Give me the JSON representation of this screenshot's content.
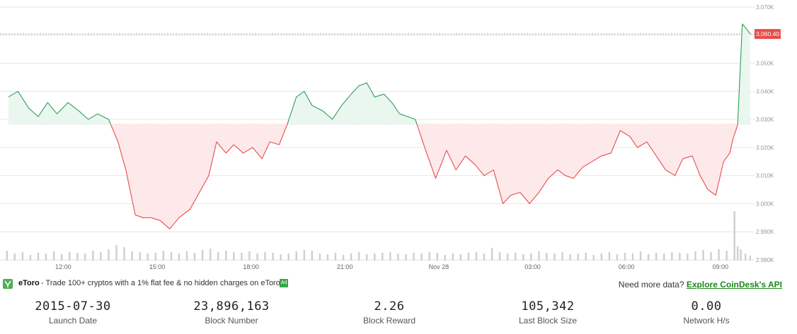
{
  "chart_data": {
    "type": "area",
    "baseline": 3028.3,
    "last_price_label": "3,060.40",
    "last_price": 3060.4,
    "ylim": [
      2980,
      3070
    ],
    "y_ticks": [
      {
        "v": 3070,
        "label": "3.070K"
      },
      {
        "v": 3060,
        "label": "3.060K"
      },
      {
        "v": 3050,
        "label": "3.050K"
      },
      {
        "v": 3040,
        "label": "3.040K"
      },
      {
        "v": 3030,
        "label": "3.030K"
      },
      {
        "v": 3020,
        "label": "3.020K"
      },
      {
        "v": 3010,
        "label": "3.010K"
      },
      {
        "v": 3000,
        "label": "3.000K"
      },
      {
        "v": 2990,
        "label": "2.990K"
      },
      {
        "v": 2980,
        "label": "2.980K"
      }
    ],
    "x_ticks": [
      {
        "t": 12.0,
        "label": "12:00"
      },
      {
        "t": 15.0,
        "label": "15:00"
      },
      {
        "t": 18.0,
        "label": "18:00"
      },
      {
        "t": 21.0,
        "label": "21:00"
      },
      {
        "t": 24.0,
        "label": "Nov 28"
      },
      {
        "t": 27.0,
        "label": "03:00"
      },
      {
        "t": 30.0,
        "label": "06:00"
      },
      {
        "t": 33.0,
        "label": "09:00"
      }
    ],
    "series": [
      {
        "x": [
          10.25,
          10.55,
          10.9,
          11.2,
          11.5,
          11.8,
          12.15,
          12.5,
          12.8,
          13.1,
          13.45,
          13.75,
          14.0,
          14.3,
          14.55,
          14.8,
          15.1,
          15.4,
          15.7,
          16.05,
          16.35,
          16.65,
          16.9,
          17.2,
          17.45,
          17.75,
          18.05,
          18.35,
          18.6,
          18.9,
          19.15,
          19.45,
          19.7,
          19.95,
          20.3,
          20.6,
          20.9,
          21.2,
          21.45,
          21.7,
          21.95,
          22.25,
          22.5,
          22.75,
          23.0,
          23.25,
          23.55,
          23.9,
          24.25,
          24.55,
          24.85,
          25.15,
          25.45,
          25.75,
          26.05,
          26.3,
          26.6,
          26.9,
          27.2,
          27.5,
          27.8,
          28.05,
          28.3,
          28.6,
          28.9,
          29.2,
          29.5,
          29.8,
          30.1,
          30.35,
          30.65,
          30.95,
          31.25,
          31.55,
          31.8,
          32.1,
          32.35,
          32.6,
          32.85,
          33.1,
          33.3,
          33.4,
          33.55,
          33.7,
          33.85,
          33.95
        ],
        "y": [
          3038,
          3040,
          3034,
          3031,
          3036,
          3032,
          3036,
          3033,
          3030,
          3032,
          3030,
          3022,
          3012,
          2996,
          2995,
          2995,
          2994,
          2991,
          2995,
          2998,
          3004,
          3010,
          3022,
          3018,
          3021,
          3018,
          3020,
          3016,
          3022,
          3021,
          3028,
          3038,
          3040,
          3035,
          3033,
          3030,
          3035,
          3039,
          3042,
          3043,
          3038,
          3039,
          3036,
          3032,
          3031,
          3030,
          3020,
          3009,
          3019,
          3012,
          3017,
          3014,
          3010,
          3012,
          3000,
          3003,
          3004,
          3000,
          3004,
          3009,
          3012,
          3010,
          3009,
          3013,
          3015,
          3017,
          3018,
          3026,
          3024,
          3020,
          3022,
          3017,
          3012,
          3010,
          3016,
          3017,
          3010,
          3005,
          3003,
          3015,
          3018,
          3023,
          3028,
          3064,
          3062,
          3060.4
        ]
      }
    ],
    "volume": {
      "x": [
        10.2,
        10.45,
        10.7,
        10.95,
        11.2,
        11.45,
        11.7,
        11.95,
        12.2,
        12.45,
        12.7,
        12.95,
        13.2,
        13.45,
        13.7,
        13.95,
        14.2,
        14.45,
        14.7,
        14.95,
        15.2,
        15.45,
        15.7,
        15.95,
        16.2,
        16.45,
        16.7,
        16.95,
        17.2,
        17.45,
        17.7,
        17.95,
        18.2,
        18.45,
        18.7,
        18.95,
        19.2,
        19.45,
        19.7,
        19.95,
        20.2,
        20.45,
        20.7,
        20.95,
        21.2,
        21.45,
        21.7,
        21.95,
        22.2,
        22.45,
        22.7,
        22.95,
        23.2,
        23.45,
        23.7,
        23.95,
        24.2,
        24.45,
        24.7,
        24.95,
        25.2,
        25.45,
        25.7,
        25.95,
        26.2,
        26.45,
        26.7,
        26.95,
        27.2,
        27.45,
        27.7,
        27.95,
        28.2,
        28.45,
        28.7,
        28.95,
        29.2,
        29.45,
        29.7,
        29.95,
        30.2,
        30.45,
        30.7,
        30.95,
        31.2,
        31.45,
        31.7,
        31.95,
        32.2,
        32.45,
        32.7,
        32.95,
        33.2,
        33.45,
        33.55,
        33.65,
        33.8,
        33.95
      ],
      "v": [
        0.14,
        0.1,
        0.12,
        0.08,
        0.11,
        0.1,
        0.13,
        0.09,
        0.12,
        0.11,
        0.1,
        0.14,
        0.12,
        0.16,
        0.22,
        0.19,
        0.13,
        0.12,
        0.1,
        0.11,
        0.14,
        0.12,
        0.1,
        0.13,
        0.11,
        0.15,
        0.17,
        0.12,
        0.14,
        0.12,
        0.11,
        0.13,
        0.1,
        0.12,
        0.11,
        0.09,
        0.1,
        0.13,
        0.15,
        0.14,
        0.1,
        0.09,
        0.11,
        0.08,
        0.1,
        0.12,
        0.09,
        0.1,
        0.11,
        0.12,
        0.1,
        0.09,
        0.11,
        0.1,
        0.12,
        0.11,
        0.08,
        0.1,
        0.09,
        0.11,
        0.12,
        0.1,
        0.18,
        0.12,
        0.1,
        0.11,
        0.09,
        0.1,
        0.13,
        0.11,
        0.1,
        0.12,
        0.09,
        0.1,
        0.11,
        0.08,
        0.1,
        0.12,
        0.09,
        0.11,
        0.1,
        0.13,
        0.09,
        0.11,
        0.1,
        0.12,
        0.11,
        0.1,
        0.13,
        0.15,
        0.12,
        0.16,
        0.14,
        0.7,
        0.2,
        0.16,
        0.1,
        0.07
      ]
    }
  },
  "ad": {
    "brand": "eToro",
    "text": "- Trade 100+ cryptos with a 1% flat fee & no hidden charges on eToro.",
    "badge": "Ad",
    "more_data": "Need more data?",
    "link_text": "Explore CoinDesk's API"
  },
  "stats": [
    {
      "value": "2015-07-30",
      "label": "Launch Date"
    },
    {
      "value": "23,896,163",
      "label": "Block Number"
    },
    {
      "value": "2.26",
      "label": "Block Reward"
    },
    {
      "value": "105,342",
      "label": "Last Block Size"
    },
    {
      "value": "0.00",
      "label": "Network H/s"
    }
  ],
  "colors": {
    "up": "#2e9e5b",
    "up_fill": "#eaf7ef",
    "down": "#e74c4c",
    "down_fill": "#fde9e9",
    "price_badge": "#e74c4c",
    "volume": "#cfcfcf"
  }
}
